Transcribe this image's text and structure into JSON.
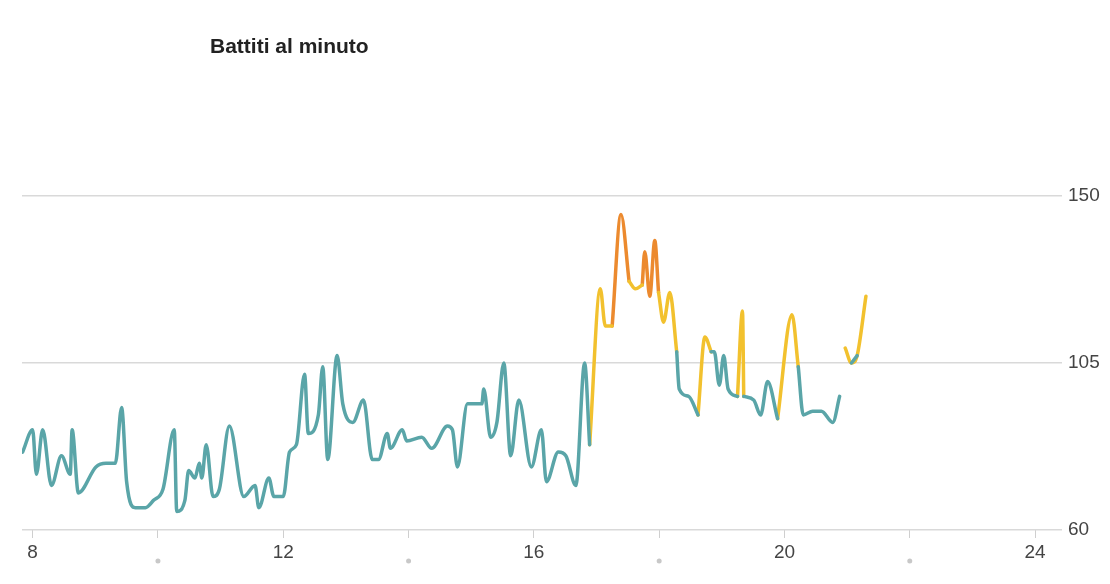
{
  "chart_data": {
    "type": "line",
    "title": "Battiti al minuto",
    "x": [
      7.84,
      8.0,
      8.06,
      8.16,
      8.3,
      8.46,
      8.6,
      8.63,
      8.73,
      9.01,
      9.17,
      9.32,
      9.42,
      9.5,
      9.64,
      9.8,
      9.93,
      10.08,
      10.26,
      10.3,
      10.43,
      10.49,
      10.59,
      10.66,
      10.7,
      10.77,
      10.88,
      10.98,
      11.14,
      11.37,
      11.55,
      11.61,
      11.77,
      11.85,
      12.0,
      12.1,
      12.21,
      12.34,
      12.4,
      12.56,
      12.63,
      12.71,
      12.86,
      12.95,
      13.11,
      13.28,
      13.42,
      13.52,
      13.66,
      13.71,
      13.9,
      13.97,
      14.21,
      14.37,
      14.62,
      14.7,
      14.78,
      14.94,
      15.17,
      15.2,
      15.31,
      15.41,
      15.52,
      15.63,
      15.76,
      15.96,
      16.12,
      16.2,
      16.39,
      16.51,
      16.67,
      16.81,
      16.89,
      17.06,
      17.14,
      17.25,
      17.39,
      17.52,
      17.62,
      17.73,
      17.77,
      17.85,
      17.93,
      17.99,
      18.07,
      18.17,
      18.28,
      18.32,
      18.47,
      18.62,
      18.73,
      18.83,
      18.88,
      18.96,
      19.03,
      19.1,
      19.25,
      19.33,
      19.35,
      19.51,
      19.62,
      19.73,
      19.89,
      20.12,
      20.22,
      20.3,
      20.45,
      20.59,
      20.77,
      20.88,
      20.97,
      21.07,
      21.16,
      21.3
    ],
    "series": [
      {
        "color": "#5aa5a8",
        "values": [
          81,
          87,
          75,
          87,
          72,
          80,
          75,
          87,
          70,
          77,
          78,
          78,
          93,
          73,
          66,
          66,
          68,
          71,
          87,
          65,
          68,
          76,
          74,
          78,
          74,
          83,
          69,
          71,
          88,
          69,
          72,
          66,
          74,
          69,
          69,
          81,
          83,
          102,
          86,
          91,
          104,
          79,
          107,
          94,
          89,
          95,
          79,
          79,
          86,
          82,
          87,
          84,
          85,
          82,
          88,
          87,
          77,
          94,
          94,
          98,
          85,
          89,
          105,
          80,
          95,
          77,
          87,
          73,
          81,
          80,
          72,
          105,
          83,
          null,
          null,
          null,
          null,
          null,
          null,
          null,
          null,
          null,
          null,
          null,
          null,
          null,
          108,
          98,
          96,
          91,
          null,
          108,
          108,
          99,
          107,
          98,
          96,
          null,
          96,
          95,
          91,
          100,
          90,
          null,
          104,
          91,
          92,
          92,
          89,
          96,
          null,
          105,
          107,
          null
        ]
      },
      {
        "color": "#f2c12e",
        "values": [
          null,
          null,
          null,
          null,
          null,
          null,
          null,
          null,
          null,
          null,
          null,
          null,
          null,
          null,
          null,
          null,
          null,
          null,
          null,
          null,
          null,
          null,
          null,
          null,
          null,
          null,
          null,
          null,
          null,
          null,
          null,
          null,
          null,
          null,
          null,
          null,
          null,
          null,
          null,
          null,
          null,
          null,
          null,
          null,
          null,
          null,
          null,
          null,
          null,
          null,
          null,
          null,
          null,
          null,
          null,
          null,
          null,
          null,
          null,
          null,
          null,
          null,
          null,
          null,
          null,
          null,
          null,
          null,
          null,
          null,
          null,
          null,
          83,
          125,
          115,
          115,
          null,
          127,
          125,
          126,
          null,
          null,
          null,
          124,
          116,
          124,
          108,
          null,
          null,
          91,
          112,
          108,
          null,
          null,
          null,
          null,
          96,
          119,
          96,
          null,
          null,
          null,
          90,
          118,
          104,
          null,
          null,
          null,
          null,
          null,
          109,
          105,
          107,
          123
        ]
      },
      {
        "color": "#ec8a2e",
        "values": [
          null,
          null,
          null,
          null,
          null,
          null,
          null,
          null,
          null,
          null,
          null,
          null,
          null,
          null,
          null,
          null,
          null,
          null,
          null,
          null,
          null,
          null,
          null,
          null,
          null,
          null,
          null,
          null,
          null,
          null,
          null,
          null,
          null,
          null,
          null,
          null,
          null,
          null,
          null,
          null,
          null,
          null,
          null,
          null,
          null,
          null,
          null,
          null,
          null,
          null,
          null,
          null,
          null,
          null,
          null,
          null,
          null,
          null,
          null,
          null,
          null,
          null,
          null,
          null,
          null,
          null,
          null,
          null,
          null,
          null,
          null,
          null,
          null,
          null,
          null,
          115,
          145,
          127,
          null,
          126,
          135,
          123,
          138,
          124,
          null,
          null,
          null,
          null,
          null,
          null,
          null,
          null,
          null,
          null,
          null,
          null,
          null,
          null,
          null,
          null,
          null,
          null,
          null,
          null,
          null,
          null,
          null,
          null,
          null,
          null,
          null,
          null,
          null,
          null
        ]
      }
    ],
    "xlim": [
      7.83,
      24.27
    ],
    "xticks": [
      8,
      {
        "value": 10,
        "label": null
      },
      12,
      {
        "value": 14,
        "label": null
      },
      16,
      {
        "value": 18,
        "label": null
      },
      20,
      {
        "value": 22,
        "label": null
      },
      24
    ],
    "ylim": [
      60,
      150
    ],
    "yticks": [
      60,
      105,
      150
    ],
    "grid": "y",
    "legend": false,
    "marker": "none",
    "line_style": "solid"
  }
}
